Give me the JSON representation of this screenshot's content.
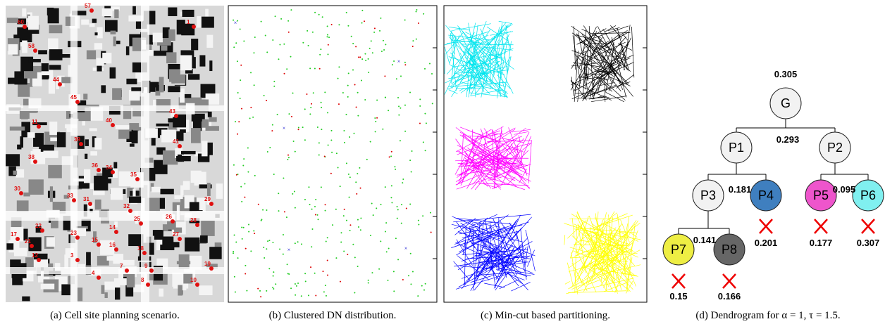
{
  "captions": [
    "(a) Cell site planning scenario.",
    "(b) Clustered DN distribution.",
    "(c) Min-cut based partitioning.",
    "(d) Dendrogram for α = 1, τ = 1.5."
  ],
  "site_labels": [
    "57",
    "60",
    "58",
    "1",
    "44",
    "45",
    "11",
    "43",
    "38",
    "39",
    "40",
    "41",
    "35",
    "34",
    "36",
    "33",
    "31",
    "32",
    "30",
    "29",
    "28",
    "26",
    "27",
    "25",
    "23",
    "22",
    "21",
    "19",
    "18",
    "17",
    "16",
    "15",
    "14",
    "12",
    "10",
    "9",
    "8",
    "7",
    "4",
    "3"
  ],
  "dendrogram": {
    "nodes": [
      {
        "label": "G",
        "color": "#f2f2f2"
      },
      {
        "label": "P1",
        "color": "#f2f2f2"
      },
      {
        "label": "P2",
        "color": "#f2f2f2"
      },
      {
        "label": "P3",
        "color": "#f2f2f2"
      },
      {
        "label": "P4",
        "color": "#3f7fbf"
      },
      {
        "label": "P5",
        "color": "#ee55cc"
      },
      {
        "label": "P6",
        "color": "#80f0f0"
      },
      {
        "label": "P7",
        "color": "#eeee44"
      },
      {
        "label": "P8",
        "color": "#666666"
      }
    ],
    "scores": [
      0.305,
      0.293,
      0.181,
      0.095,
      0.141,
      0.201,
      0.177,
      0.307,
      0.15,
      0.166
    ]
  }
}
